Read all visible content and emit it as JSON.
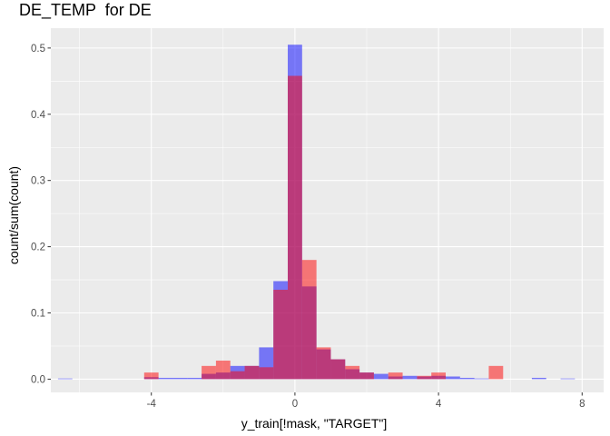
{
  "chart_data": {
    "type": "bar",
    "title": "DE_TEMP  for DE",
    "xlabel": "y_train[!mask, \"TARGET\"]",
    "ylabel": "count/sum(count)",
    "xlim": [
      -6.8,
      8.6
    ],
    "ylim": [
      -0.02,
      0.53
    ],
    "x_ticks": [
      -4,
      0,
      4,
      8
    ],
    "x_tick_labels": [
      "-4",
      "0",
      "4",
      "8"
    ],
    "y_ticks": [
      0.0,
      0.1,
      0.2,
      0.3,
      0.4,
      0.5
    ],
    "y_tick_labels": [
      "0.0",
      "0.1",
      "0.2",
      "0.3",
      "0.4",
      "0.5"
    ],
    "grid": true,
    "legend": "none",
    "bin_width": 0.4,
    "bin_centers": [
      -6.4,
      -6.0,
      -5.6,
      -5.2,
      -4.8,
      -4.4,
      -4.0,
      -3.6,
      -3.2,
      -2.8,
      -2.4,
      -2.0,
      -1.6,
      -1.2,
      -0.8,
      -0.4,
      0.0,
      0.4,
      0.8,
      1.2,
      1.6,
      2.0,
      2.4,
      2.8,
      3.2,
      3.6,
      4.0,
      4.4,
      4.8,
      5.2,
      5.6,
      6.0,
      6.4,
      6.8,
      7.2,
      7.6,
      8.0
    ],
    "series": [
      {
        "color": "#0000ff",
        "opacity": 0.5,
        "values": [
          0.001,
          0,
          0,
          0,
          0,
          0,
          0.003,
          0.002,
          0.002,
          0.002,
          0.008,
          0.01,
          0.02,
          0.02,
          0.048,
          0.148,
          0.505,
          0.14,
          0.045,
          0.03,
          0.015,
          0.01,
          0.008,
          0.004,
          0.005,
          0.004,
          0.005,
          0.004,
          0.002,
          0.001,
          0,
          0,
          0,
          0.002,
          0,
          0.001,
          0
        ]
      },
      {
        "color": "#ff0000",
        "opacity": 0.5,
        "values": [
          0,
          0,
          0,
          0,
          0,
          0,
          0.01,
          0,
          0,
          0,
          0.02,
          0.028,
          0.012,
          0.02,
          0.018,
          0.135,
          0.458,
          0.18,
          0.048,
          0.03,
          0.02,
          0.01,
          0,
          0.01,
          0,
          0.005,
          0.01,
          0,
          0,
          0,
          0.02,
          0,
          0,
          0,
          0,
          0,
          0
        ]
      }
    ],
    "colors": {
      "panel_bg": "#ebebeb",
      "grid_major": "#ffffff",
      "tick_text": "#4d4d4d",
      "axis_title": "#000000"
    }
  }
}
